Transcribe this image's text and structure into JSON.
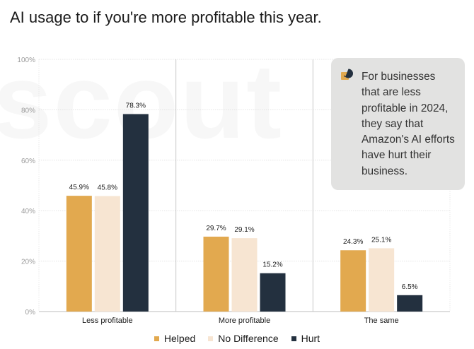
{
  "chart_data": {
    "type": "bar",
    "title": "AI usage to if you're more profitable this year.",
    "categories": [
      "Less profitable",
      "More profitable",
      "The same"
    ],
    "series": [
      {
        "name": "Helped",
        "color": "#e2a94f",
        "values": [
          45.9,
          29.7,
          24.3
        ],
        "labels": [
          "45.9%",
          "29.7%",
          "24.3%"
        ]
      },
      {
        "name": "No Difference",
        "color": "#f7e5d2",
        "values": [
          45.8,
          29.1,
          25.1
        ],
        "labels": [
          "45.8%",
          "29.1%",
          "25.1%"
        ]
      },
      {
        "name": "Hurt",
        "color": "#23303f",
        "values": [
          78.3,
          15.2,
          6.5
        ],
        "labels": [
          "78.3%",
          "15.2%",
          "6.5%"
        ]
      }
    ],
    "ylim": [
      0,
      100
    ],
    "yticks": [
      "0%",
      "20%",
      "40%",
      "60%",
      "80%",
      "100%"
    ],
    "xlabel": "",
    "ylabel": "",
    "legend_position": "bottom-center",
    "grid": true
  },
  "callout": {
    "text": "For businesses that are less profitable in 2024, they say that Amazon's AI efforts have hurt their business.",
    "icon": "chat-bubble-icon",
    "icon_colors": {
      "back": "#e2a94f",
      "front": "#23303f"
    }
  },
  "watermark": {
    "text": "scout"
  }
}
